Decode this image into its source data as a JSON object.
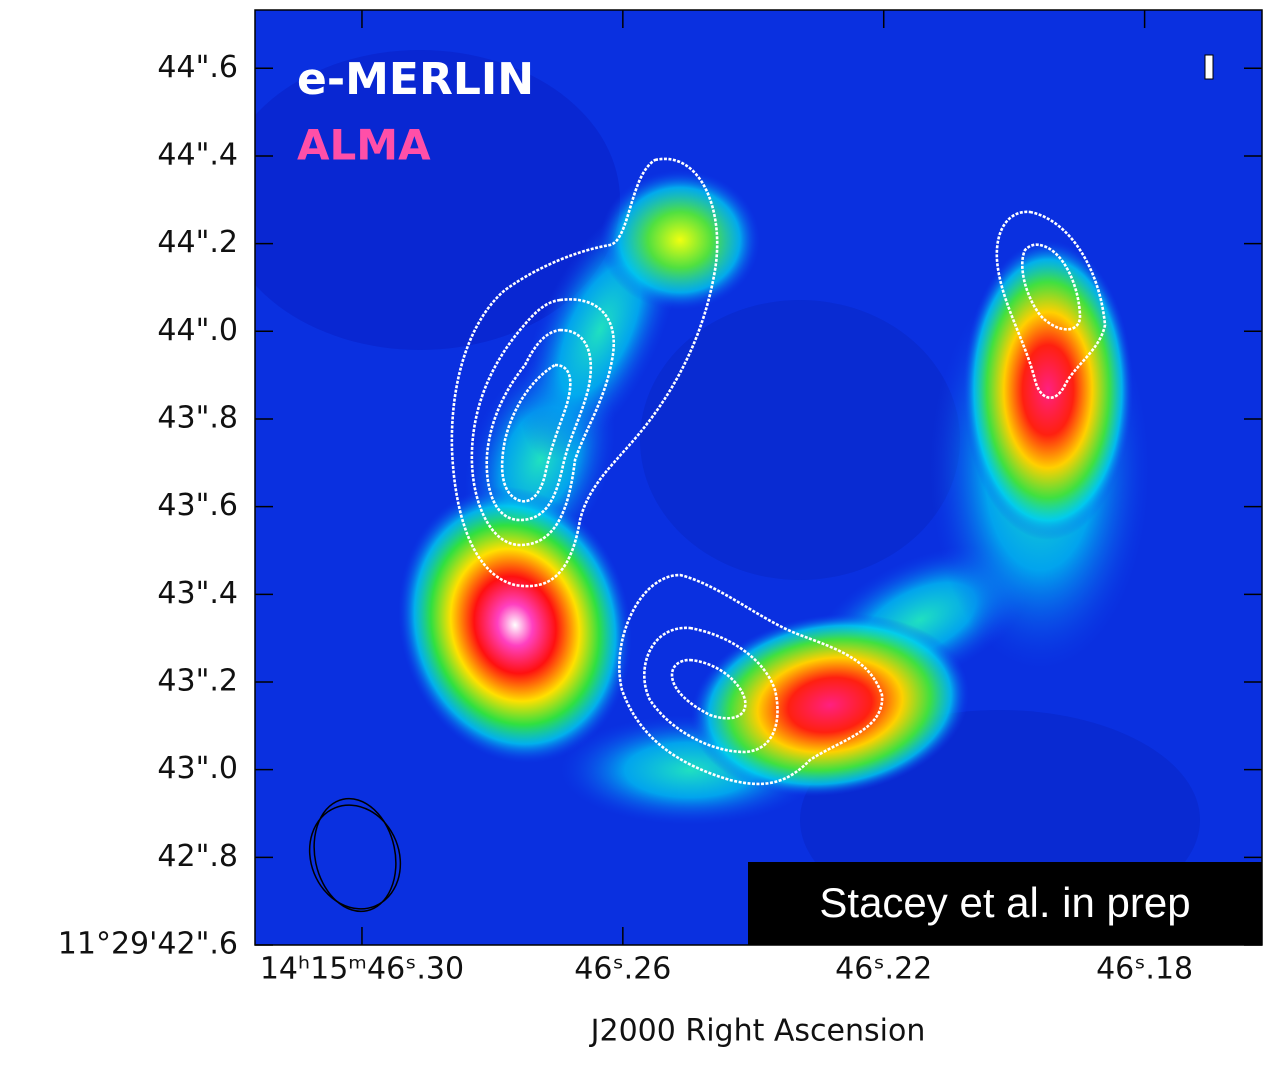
{
  "chart_data": {
    "type": "image",
    "title": "e-MERLIN",
    "subtitle": "ALMA",
    "annotation": "Stacey et al. in prep",
    "x_label": "J2000 Right Ascension",
    "xlim": [
      46.3164,
      46.162
    ],
    "ylim": [
      42.6,
      44.733
    ],
    "xticks": [
      {
        "value": 46.3,
        "label": "14ʰ15ᵐ46ˢ.30"
      },
      {
        "value": 46.26,
        "label": "46ˢ.26"
      },
      {
        "value": 46.22,
        "label": "46ˢ.22"
      },
      {
        "value": 46.18,
        "label": "46ˢ.18"
      }
    ],
    "yticks": [
      {
        "value": 42.6,
        "label": "11°29'42\".6"
      },
      {
        "value": 42.8,
        "label": "42\".8"
      },
      {
        "value": 43.0,
        "label": "43\".0"
      },
      {
        "value": 43.2,
        "label": "43\".2"
      },
      {
        "value": 43.4,
        "label": "43\".4"
      },
      {
        "value": 43.6,
        "label": "43\".6"
      },
      {
        "value": 43.8,
        "label": "43\".8"
      },
      {
        "value": 44.0,
        "label": "44\".0"
      },
      {
        "value": 44.2,
        "label": "44\".2"
      },
      {
        "value": 44.4,
        "label": "44\".4"
      },
      {
        "value": 44.6,
        "label": "44\".6"
      }
    ]
  }
}
